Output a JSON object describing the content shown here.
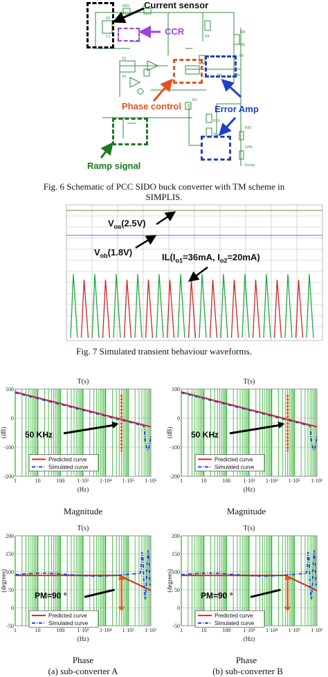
{
  "fig6": {
    "callouts": {
      "current_sensor": "Current sensor",
      "ccr": "CCR",
      "phase_control": "Phase control",
      "error_amp": "Error Amp",
      "ramp_signal": "Ramp signal"
    },
    "caption_line1": "Fig. 6 Schematic of PCC SIDO buck converter with TM scheme in",
    "caption_line2": "SIMPLIS.",
    "colors": {
      "schematic": "#2e8b3e",
      "current_sensor": "#000000",
      "ccr": "#a040e0",
      "phase_control": "#e8501c",
      "error_amp": "#1f3fc8",
      "ramp_signal": "#1a7a1a"
    }
  },
  "fig7": {
    "labels": {
      "voa_main": "V",
      "voa_sub": "oa",
      "voa_value": "(2.5V)",
      "vob_main": "V",
      "vob_sub": "ob",
      "vob_value": "(1.8V)",
      "il_prefix": "IL(I",
      "il_sub1": "o1",
      "il_mid": "=36mA, I",
      "il_sub2": "o2",
      "il_suffix": "=20mA)"
    },
    "caption": "Fig. 7 Simulated transient behaviour waveforms.",
    "colors": {
      "pulse_green": "#1aa83a",
      "pulse_red": "#d42020",
      "vob_line": "#2a3fd0",
      "voa_line": "#8a7a30"
    }
  },
  "fig8": {
    "panels": {
      "mag_a": {
        "title": "T(s)",
        "ylabel": "(dB)",
        "xlabel": "(Hz)",
        "annotation": "50 KHz",
        "label": "Magnitude"
      },
      "mag_b": {
        "title": "T(s)",
        "ylabel": "(dB)",
        "xlabel": "(Hz)",
        "annotation": "50 KHz",
        "label": "Magnitude"
      },
      "ph_a": {
        "title": "T(s)",
        "ylabel": "(degrees)",
        "xlabel": "(Hz)",
        "annotation": "PM=90",
        "label": "Phase"
      },
      "ph_b": {
        "title": "T(s)",
        "ylabel": "(degrees)",
        "xlabel": "(Hz)",
        "annotation": "PM=90",
        "label": "Phase"
      }
    },
    "legend": {
      "predicted": "Predicted curve",
      "simulated": "Simulated curve"
    },
    "x_ticks": [
      "1",
      "10",
      "100",
      "1·10³",
      "1·10⁴",
      "1·10⁵",
      "1·10⁶"
    ],
    "mag_y_ticks": [
      "100",
      "0",
      "-100",
      "-200"
    ],
    "ph_y_ticks": [
      "200",
      "150",
      "100",
      "50",
      "0",
      "-50"
    ],
    "sub_a": "(a) sub-converter A",
    "sub_b": "(b) sub-converter B",
    "colors": {
      "grid_green": "#22b022",
      "predicted": "#e02020",
      "simulated": "#2040d0",
      "marker": "#e05a10"
    }
  }
}
